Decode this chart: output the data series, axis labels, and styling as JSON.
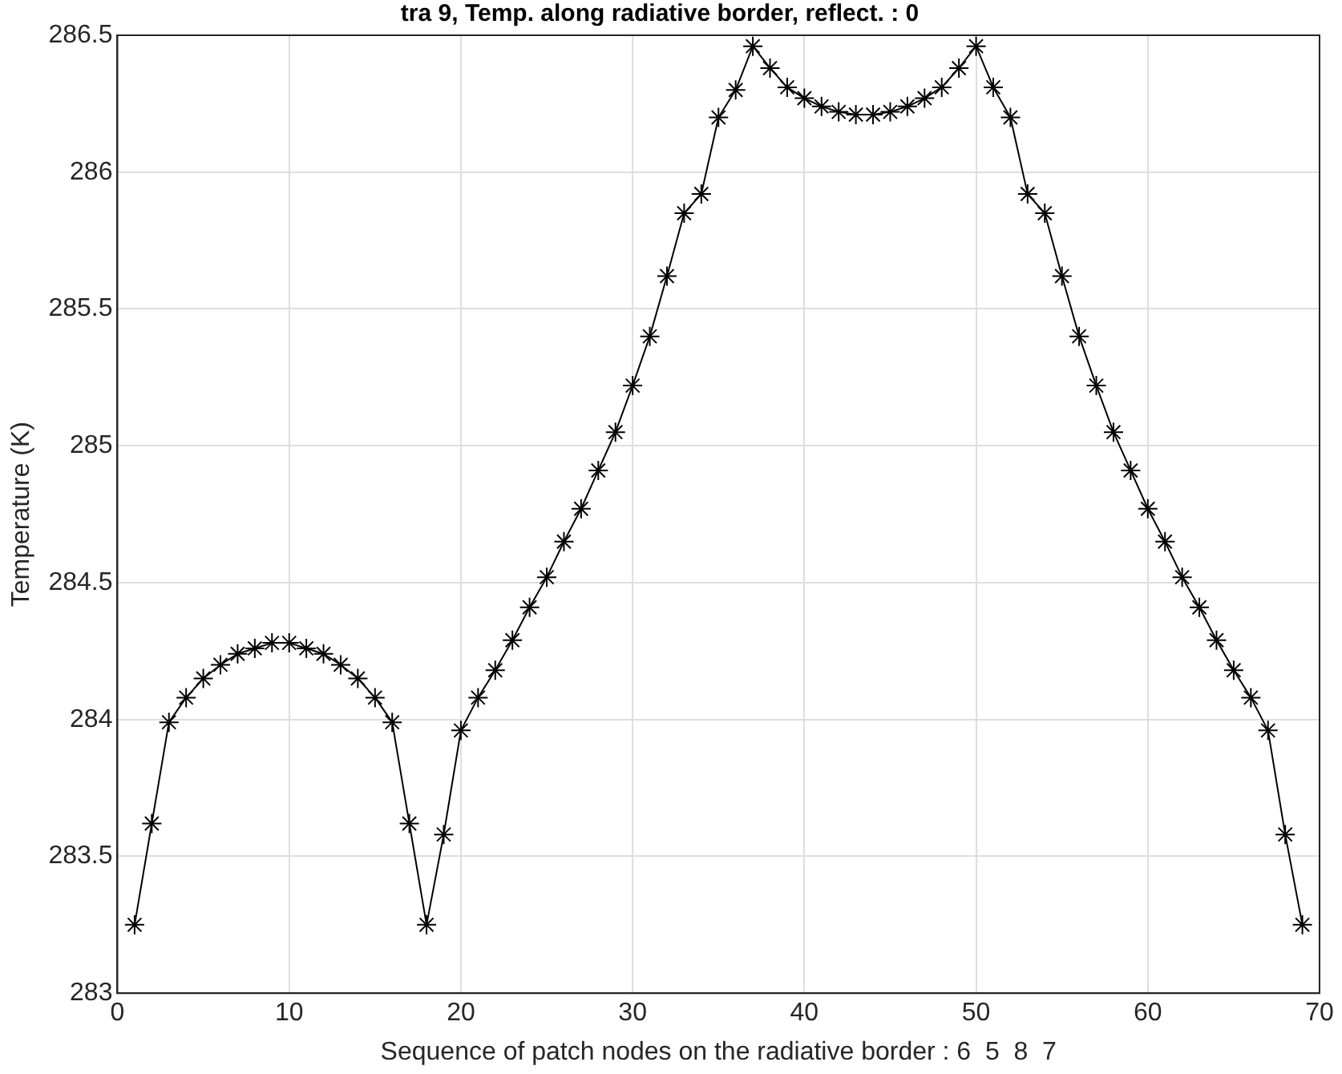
{
  "chart_data": {
    "type": "line",
    "title": "tra 9, Temp. along radiative border, reflect. : 0",
    "xlabel": "Sequence of patch nodes on the radiative border : 6  5  8  7",
    "ylabel": "Temperature (K)",
    "x": [
      1,
      2,
      3,
      4,
      5,
      6,
      7,
      8,
      9,
      10,
      11,
      12,
      13,
      14,
      15,
      16,
      17,
      18,
      19,
      20,
      21,
      22,
      23,
      24,
      25,
      26,
      27,
      28,
      29,
      30,
      31,
      32,
      33,
      34,
      35,
      36,
      37,
      38,
      39,
      40,
      41,
      42,
      43,
      44,
      45,
      46,
      47,
      48,
      49,
      50,
      51,
      52,
      53,
      54,
      55,
      56,
      57,
      58,
      59,
      60,
      61,
      62,
      63,
      64,
      65,
      66,
      67,
      68,
      69
    ],
    "series": [
      {
        "color": "#000000",
        "values": [
          283.25,
          283.62,
          283.99,
          284.08,
          284.15,
          284.2,
          284.24,
          284.26,
          284.28,
          284.28,
          284.26,
          284.24,
          284.2,
          284.15,
          284.08,
          283.99,
          283.62,
          283.25,
          283.58,
          283.96,
          284.08,
          284.18,
          284.29,
          284.41,
          284.52,
          284.65,
          284.77,
          284.91,
          285.05,
          285.22,
          285.4,
          285.62,
          285.85,
          285.92,
          286.2,
          286.3,
          286.46,
          286.38,
          286.31,
          286.27,
          286.24,
          286.22,
          286.21,
          286.21,
          286.22,
          286.24,
          286.27,
          286.31,
          286.38,
          286.46,
          286.31,
          286.2,
          285.92,
          285.85,
          285.62,
          285.4,
          285.22,
          285.05,
          284.91,
          284.77,
          284.65,
          284.52,
          284.41,
          284.29,
          284.18,
          284.08,
          283.96,
          283.58,
          283.25
        ]
      }
    ],
    "xlim": [
      0,
      70
    ],
    "xticks": [
      0,
      10,
      20,
      30,
      40,
      50,
      60,
      70
    ],
    "ylim": [
      283,
      286.5
    ],
    "yticks": [
      283,
      283.5,
      284,
      284.5,
      285,
      285.5,
      286,
      286.5
    ],
    "grid": true,
    "legend": false,
    "marker": "cross",
    "line_style": "solid"
  }
}
